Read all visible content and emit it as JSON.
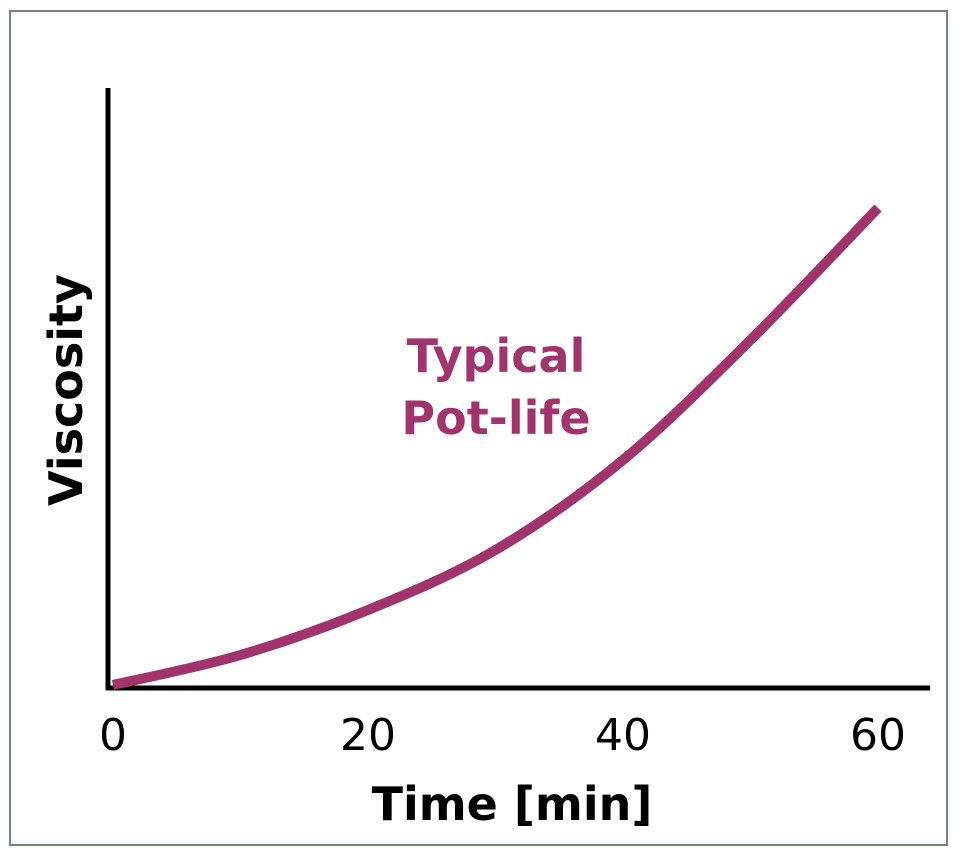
{
  "chart_data": {
    "type": "line",
    "title": "",
    "xlabel": "Time [min]",
    "ylabel": "Viscosity",
    "xticks": [
      0,
      20,
      40,
      60
    ],
    "xtick_labels": [
      "0",
      "20",
      "40",
      "60"
    ],
    "xlim": [
      0,
      60
    ],
    "ylim": [
      0,
      100
    ],
    "yticks": [],
    "grid": false,
    "series": [
      {
        "name": "Typical Pot-life",
        "color": "#a1346c",
        "x": [
          0,
          10,
          20,
          30,
          40,
          50,
          60
        ],
        "y": [
          0.5,
          5.5,
          13,
          23,
          38,
          58,
          80
        ]
      }
    ],
    "annotations": [
      {
        "line1": "Typical",
        "line2": "Pot-life",
        "color": "#a1346c"
      }
    ]
  }
}
